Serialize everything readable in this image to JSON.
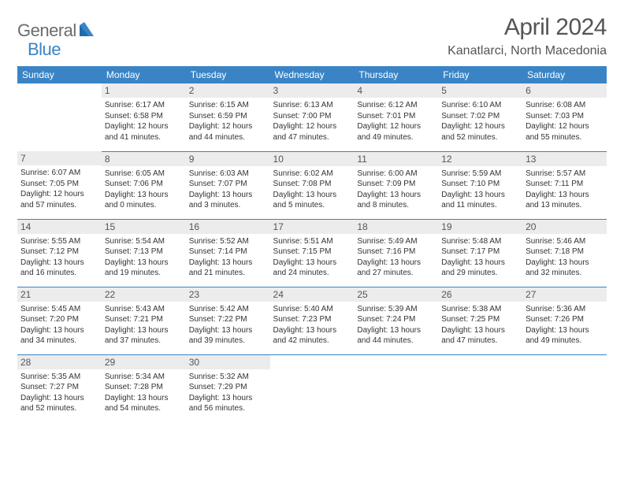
{
  "logo": {
    "part1": "General",
    "part2": "Blue"
  },
  "title": "April 2024",
  "location": "Kanatlarci, North Macedonia",
  "colors": {
    "header_bg": "#3a84c5",
    "header_text": "#ffffff",
    "daynum_bg": "#ececec",
    "border": "#3a84c5",
    "logo_gray": "#6b6b6b",
    "logo_blue": "#3a84c5"
  },
  "day_labels": [
    "Sunday",
    "Monday",
    "Tuesday",
    "Wednesday",
    "Thursday",
    "Friday",
    "Saturday"
  ],
  "weeks": [
    [
      {
        "n": "",
        "lines": []
      },
      {
        "n": "1",
        "lines": [
          "Sunrise: 6:17 AM",
          "Sunset: 6:58 PM",
          "Daylight: 12 hours",
          "and 41 minutes."
        ]
      },
      {
        "n": "2",
        "lines": [
          "Sunrise: 6:15 AM",
          "Sunset: 6:59 PM",
          "Daylight: 12 hours",
          "and 44 minutes."
        ]
      },
      {
        "n": "3",
        "lines": [
          "Sunrise: 6:13 AM",
          "Sunset: 7:00 PM",
          "Daylight: 12 hours",
          "and 47 minutes."
        ]
      },
      {
        "n": "4",
        "lines": [
          "Sunrise: 6:12 AM",
          "Sunset: 7:01 PM",
          "Daylight: 12 hours",
          "and 49 minutes."
        ]
      },
      {
        "n": "5",
        "lines": [
          "Sunrise: 6:10 AM",
          "Sunset: 7:02 PM",
          "Daylight: 12 hours",
          "and 52 minutes."
        ]
      },
      {
        "n": "6",
        "lines": [
          "Sunrise: 6:08 AM",
          "Sunset: 7:03 PM",
          "Daylight: 12 hours",
          "and 55 minutes."
        ]
      }
    ],
    [
      {
        "n": "7",
        "lines": [
          "Sunrise: 6:07 AM",
          "Sunset: 7:05 PM",
          "Daylight: 12 hours",
          "and 57 minutes."
        ]
      },
      {
        "n": "8",
        "lines": [
          "Sunrise: 6:05 AM",
          "Sunset: 7:06 PM",
          "Daylight: 13 hours",
          "and 0 minutes."
        ]
      },
      {
        "n": "9",
        "lines": [
          "Sunrise: 6:03 AM",
          "Sunset: 7:07 PM",
          "Daylight: 13 hours",
          "and 3 minutes."
        ]
      },
      {
        "n": "10",
        "lines": [
          "Sunrise: 6:02 AM",
          "Sunset: 7:08 PM",
          "Daylight: 13 hours",
          "and 5 minutes."
        ]
      },
      {
        "n": "11",
        "lines": [
          "Sunrise: 6:00 AM",
          "Sunset: 7:09 PM",
          "Daylight: 13 hours",
          "and 8 minutes."
        ]
      },
      {
        "n": "12",
        "lines": [
          "Sunrise: 5:59 AM",
          "Sunset: 7:10 PM",
          "Daylight: 13 hours",
          "and 11 minutes."
        ]
      },
      {
        "n": "13",
        "lines": [
          "Sunrise: 5:57 AM",
          "Sunset: 7:11 PM",
          "Daylight: 13 hours",
          "and 13 minutes."
        ]
      }
    ],
    [
      {
        "n": "14",
        "lines": [
          "Sunrise: 5:55 AM",
          "Sunset: 7:12 PM",
          "Daylight: 13 hours",
          "and 16 minutes."
        ]
      },
      {
        "n": "15",
        "lines": [
          "Sunrise: 5:54 AM",
          "Sunset: 7:13 PM",
          "Daylight: 13 hours",
          "and 19 minutes."
        ]
      },
      {
        "n": "16",
        "lines": [
          "Sunrise: 5:52 AM",
          "Sunset: 7:14 PM",
          "Daylight: 13 hours",
          "and 21 minutes."
        ]
      },
      {
        "n": "17",
        "lines": [
          "Sunrise: 5:51 AM",
          "Sunset: 7:15 PM",
          "Daylight: 13 hours",
          "and 24 minutes."
        ]
      },
      {
        "n": "18",
        "lines": [
          "Sunrise: 5:49 AM",
          "Sunset: 7:16 PM",
          "Daylight: 13 hours",
          "and 27 minutes."
        ]
      },
      {
        "n": "19",
        "lines": [
          "Sunrise: 5:48 AM",
          "Sunset: 7:17 PM",
          "Daylight: 13 hours",
          "and 29 minutes."
        ]
      },
      {
        "n": "20",
        "lines": [
          "Sunrise: 5:46 AM",
          "Sunset: 7:18 PM",
          "Daylight: 13 hours",
          "and 32 minutes."
        ]
      }
    ],
    [
      {
        "n": "21",
        "lines": [
          "Sunrise: 5:45 AM",
          "Sunset: 7:20 PM",
          "Daylight: 13 hours",
          "and 34 minutes."
        ]
      },
      {
        "n": "22",
        "lines": [
          "Sunrise: 5:43 AM",
          "Sunset: 7:21 PM",
          "Daylight: 13 hours",
          "and 37 minutes."
        ]
      },
      {
        "n": "23",
        "lines": [
          "Sunrise: 5:42 AM",
          "Sunset: 7:22 PM",
          "Daylight: 13 hours",
          "and 39 minutes."
        ]
      },
      {
        "n": "24",
        "lines": [
          "Sunrise: 5:40 AM",
          "Sunset: 7:23 PM",
          "Daylight: 13 hours",
          "and 42 minutes."
        ]
      },
      {
        "n": "25",
        "lines": [
          "Sunrise: 5:39 AM",
          "Sunset: 7:24 PM",
          "Daylight: 13 hours",
          "and 44 minutes."
        ]
      },
      {
        "n": "26",
        "lines": [
          "Sunrise: 5:38 AM",
          "Sunset: 7:25 PM",
          "Daylight: 13 hours",
          "and 47 minutes."
        ]
      },
      {
        "n": "27",
        "lines": [
          "Sunrise: 5:36 AM",
          "Sunset: 7:26 PM",
          "Daylight: 13 hours",
          "and 49 minutes."
        ]
      }
    ],
    [
      {
        "n": "28",
        "lines": [
          "Sunrise: 5:35 AM",
          "Sunset: 7:27 PM",
          "Daylight: 13 hours",
          "and 52 minutes."
        ]
      },
      {
        "n": "29",
        "lines": [
          "Sunrise: 5:34 AM",
          "Sunset: 7:28 PM",
          "Daylight: 13 hours",
          "and 54 minutes."
        ]
      },
      {
        "n": "30",
        "lines": [
          "Sunrise: 5:32 AM",
          "Sunset: 7:29 PM",
          "Daylight: 13 hours",
          "and 56 minutes."
        ]
      },
      {
        "n": "",
        "lines": []
      },
      {
        "n": "",
        "lines": []
      },
      {
        "n": "",
        "lines": []
      },
      {
        "n": "",
        "lines": []
      }
    ]
  ]
}
